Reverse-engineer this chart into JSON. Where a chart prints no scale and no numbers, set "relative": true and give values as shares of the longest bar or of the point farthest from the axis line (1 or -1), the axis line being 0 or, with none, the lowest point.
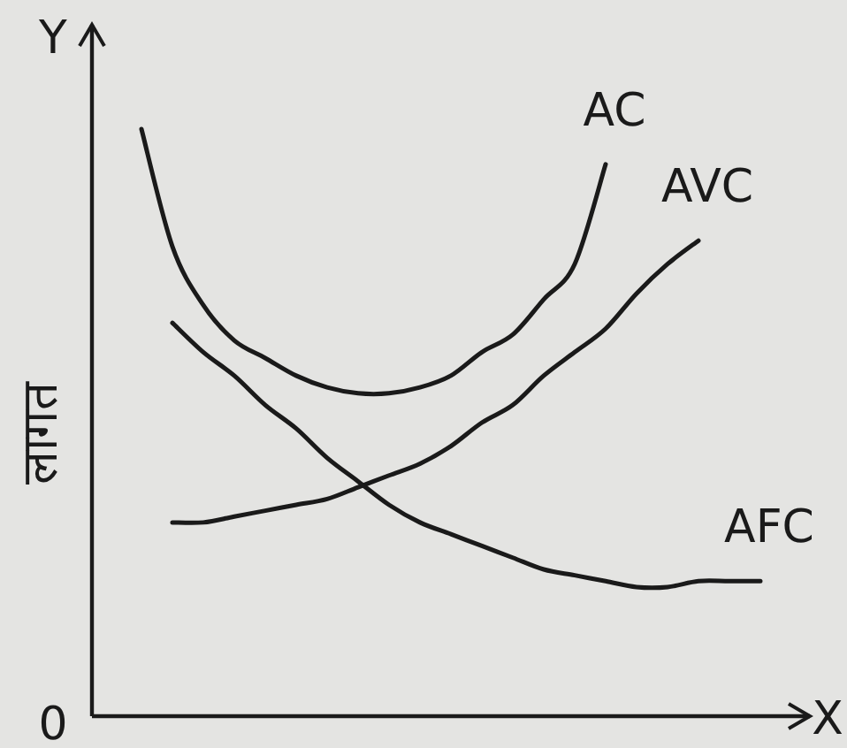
{
  "chart_data": {
    "type": "line",
    "relative": true,
    "xlabel": "X",
    "ylabel": "लागत",
    "annotations": [
      "Y",
      "0"
    ],
    "categories": [
      null,
      null,
      null,
      null,
      null,
      null,
      null,
      null,
      null,
      null,
      null,
      null,
      null,
      null,
      null,
      null,
      null,
      null,
      null,
      null,
      null
    ],
    "series": [
      {
        "name": "AC",
        "color": "#1a1a1a",
        "values": [
          1.0,
          0.8,
          0.7,
          0.64,
          0.61,
          0.58,
          0.56,
          0.55,
          0.55,
          0.56,
          0.58,
          0.62,
          0.65,
          0.71,
          0.77,
          0.94,
          null,
          null,
          null,
          null,
          null
        ]
      },
      {
        "name": "AVC",
        "color": "#1a1a1a",
        "values": [
          null,
          0.33,
          0.33,
          0.34,
          0.35,
          0.36,
          0.37,
          0.39,
          0.41,
          0.43,
          0.46,
          0.5,
          0.53,
          0.58,
          0.62,
          0.66,
          0.72,
          0.77,
          0.81,
          null,
          null
        ]
      },
      {
        "name": "AFC",
        "color": "#1a1a1a",
        "values": [
          null,
          0.67,
          0.62,
          0.58,
          0.53,
          0.49,
          0.44,
          0.4,
          0.36,
          0.33,
          0.31,
          0.29,
          0.27,
          0.25,
          0.24,
          0.23,
          0.22,
          0.22,
          0.23,
          0.23,
          0.23
        ]
      }
    ]
  }
}
